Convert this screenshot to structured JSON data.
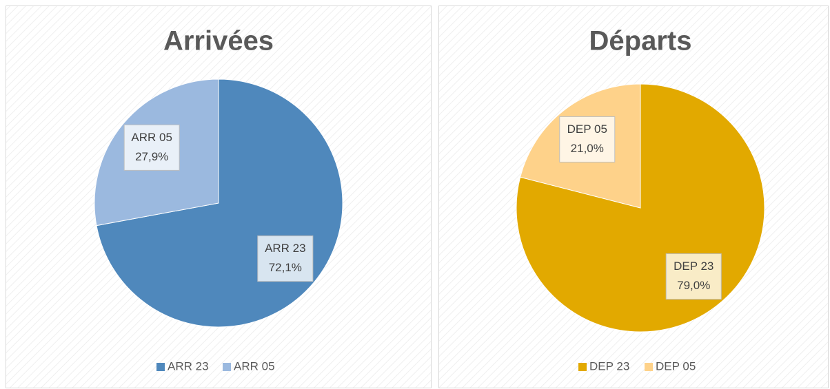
{
  "chart_data": [
    {
      "type": "pie",
      "title": "Arrivées",
      "categories": [
        "ARR 23",
        "ARR 05"
      ],
      "values": [
        72.1,
        27.9
      ],
      "value_labels": [
        "72,1%",
        "27,9%"
      ],
      "colors": [
        "#4f88bc",
        "#9bb9df"
      ],
      "legend": "bottom"
    },
    {
      "type": "pie",
      "title": "Départs",
      "categories": [
        "DEP 23",
        "DEP 05"
      ],
      "values": [
        79.0,
        21.0
      ],
      "value_labels": [
        "79,0%",
        "21,0%"
      ],
      "colors": [
        "#e2a900",
        "#fed28a"
      ],
      "legend": "bottom"
    }
  ]
}
